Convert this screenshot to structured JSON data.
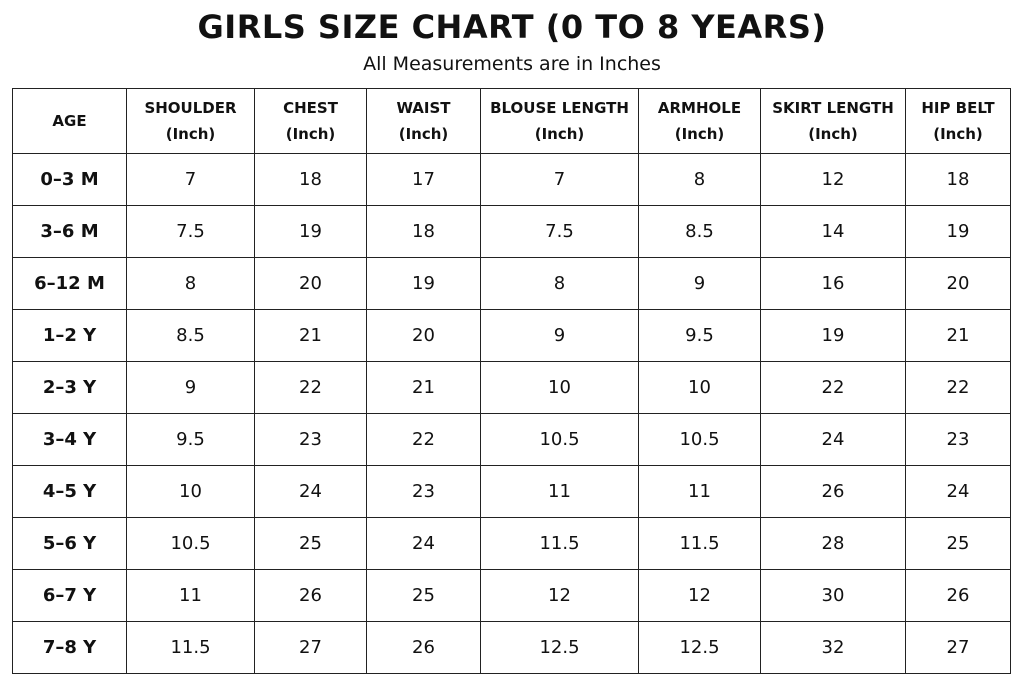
{
  "header": {
    "title": "GIRLS SIZE CHART (0 TO 8 YEARS)",
    "subtitle": "All Measurements are in Inches"
  },
  "table": {
    "columns": [
      {
        "name": "AGE"
      },
      {
        "name": "SHOULDER",
        "unit": "(Inch)"
      },
      {
        "name": "CHEST",
        "unit": "(Inch)"
      },
      {
        "name": "WAIST",
        "unit": "(Inch)"
      },
      {
        "name": "BLOUSE LENGTH",
        "unit": "(Inch)"
      },
      {
        "name": "ARMHOLE",
        "unit": "(Inch)"
      },
      {
        "name": "SKIRT LENGTH",
        "unit": "(Inch)"
      },
      {
        "name": "HIP BELT",
        "unit": "(Inch)"
      }
    ],
    "rows": [
      [
        "0–3 M",
        "7",
        "18",
        "17",
        "7",
        "8",
        "12",
        "18"
      ],
      [
        "3–6 M",
        "7.5",
        "19",
        "18",
        "7.5",
        "8.5",
        "14",
        "19"
      ],
      [
        "6–12 M",
        "8",
        "20",
        "19",
        "8",
        "9",
        "16",
        "20"
      ],
      [
        "1–2 Y",
        "8.5",
        "21",
        "20",
        "9",
        "9.5",
        "19",
        "21"
      ],
      [
        "2–3 Y",
        "9",
        "22",
        "21",
        "10",
        "10",
        "22",
        "22"
      ],
      [
        "3–4 Y",
        "9.5",
        "23",
        "22",
        "10.5",
        "10.5",
        "24",
        "23"
      ],
      [
        "4–5 Y",
        "10",
        "24",
        "23",
        "11",
        "11",
        "26",
        "24"
      ],
      [
        "5–6 Y",
        "10.5",
        "25",
        "24",
        "11.5",
        "11.5",
        "28",
        "25"
      ],
      [
        "6–7 Y",
        "11",
        "26",
        "25",
        "12",
        "12",
        "30",
        "26"
      ],
      [
        "7–8 Y",
        "11.5",
        "27",
        "26",
        "12.5",
        "12.5",
        "32",
        "27"
      ]
    ]
  }
}
